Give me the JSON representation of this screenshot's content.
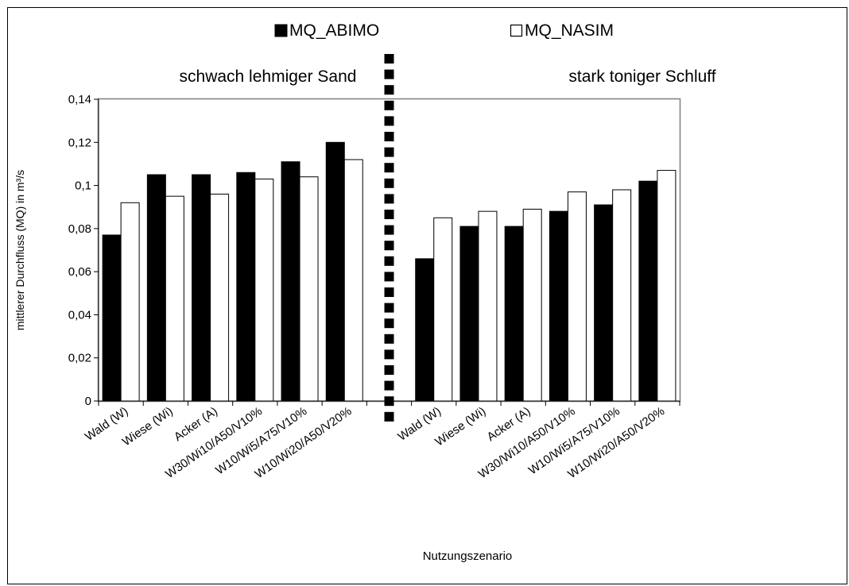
{
  "chart_data": {
    "type": "bar",
    "ylabel": "mittlerer Durchfluss (MQ) in m³/s",
    "xlabel": "Nutzungszenario",
    "ylim": [
      0,
      0.14
    ],
    "ytick_step": 0.02,
    "ytick_labels": [
      "0",
      "0,02",
      "0,04",
      "0,06",
      "0,08",
      "0,1",
      "0,12",
      "0,14"
    ],
    "grid": false,
    "legend_position": "top",
    "categories": [
      "Wald (W)",
      "Wiese (Wi)",
      "Acker (A)",
      "W30/Wi10/A50/V10%",
      "W10/Wi5/A75/V10%",
      "W10/Wi20/A50/V20%",
      "",
      "Wald (W)",
      "Wiese (Wi)",
      "Acker (A)",
      "W30/Wi10/A50/V10%",
      "W10/Wi5/A75/V10%",
      "W10/Wi20/A50/V20%"
    ],
    "group_labels": [
      "schwach lehmiger Sand",
      "stark toniger Schluff"
    ],
    "series": [
      {
        "name": "MQ_ABIMO",
        "color": "#000000",
        "values": [
          0.077,
          0.105,
          0.105,
          0.106,
          0.111,
          0.12,
          null,
          0.066,
          0.081,
          0.081,
          0.088,
          0.091,
          0.102
        ]
      },
      {
        "name": "MQ_NASIM",
        "color": "#ffffff",
        "values": [
          0.092,
          0.095,
          0.096,
          0.103,
          0.104,
          0.112,
          null,
          0.085,
          0.088,
          0.089,
          0.097,
          0.098,
          0.107
        ]
      }
    ]
  }
}
